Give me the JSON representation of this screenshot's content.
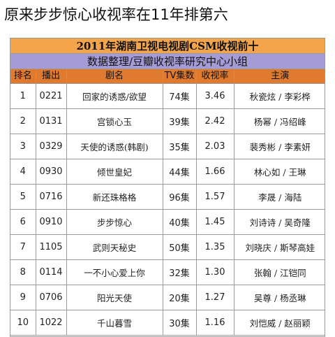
{
  "headline": "原来步步惊心收视率在11年排第六",
  "table": {
    "title": "2011年湖南卫视电视剧CSM收视前十",
    "subtitle": "数据整理/豆瓣收视率研究中心小组",
    "headers": [
      "排名",
      "播出",
      "剧名",
      "TV集数",
      "收视率",
      "主演"
    ],
    "rows": [
      {
        "rank": "1",
        "slot": "0221",
        "drama": "回家的诱惑/欲望",
        "episodes": "74集",
        "rating": "3.46",
        "cast": "秋瓷炫 / 李彩桦"
      },
      {
        "rank": "2",
        "slot": "0131",
        "drama": "宫锁心玉",
        "episodes": "39集",
        "rating": "2.42",
        "cast": "杨幂 / 冯绍峰"
      },
      {
        "rank": "3",
        "slot": "0329",
        "drama": "天使的诱惑(韩剧)",
        "episodes": "35集",
        "rating": "2.03",
        "cast": "裴秀彬 / 李素妍"
      },
      {
        "rank": "4",
        "slot": "0930",
        "drama": "倾世皇妃",
        "episodes": "44集",
        "rating": "1.66",
        "cast": "林心如 / 王琳"
      },
      {
        "rank": "5",
        "slot": "0716",
        "drama": "新还珠格格",
        "episodes": "96集",
        "rating": "1.57",
        "cast": "李晟 / 海陆"
      },
      {
        "rank": "6",
        "slot": "0910",
        "drama": "步步惊心",
        "episodes": "40集",
        "rating": "1.45",
        "cast": "刘诗诗 / 吴奇隆"
      },
      {
        "rank": "7",
        "slot": "1105",
        "drama": "武则天秘史",
        "episodes": "50集",
        "rating": "1.35",
        "cast": "刘晓庆 / 斯琴高娃"
      },
      {
        "rank": "8",
        "slot": "0114",
        "drama": "一不小心爱上你",
        "episodes": "32集",
        "rating": "1.30",
        "cast": "张翰 / 江铠同"
      },
      {
        "rank": "9",
        "slot": "0706",
        "drama": "阳光天使",
        "episodes": "20集",
        "rating": "1.27",
        "cast": "吴尊 / 杨丞琳"
      },
      {
        "rank": "10",
        "slot": "1022",
        "drama": "千山暮雪",
        "episodes": "30集",
        "rating": "1.16",
        "cast": "刘恺威 / 赵丽颖"
      }
    ]
  },
  "colors": {
    "title_bar": "#f4a44a",
    "subtitle_bar": "#a59bd6",
    "header_row": "#e07a2e",
    "border": "#9a9a9a"
  }
}
